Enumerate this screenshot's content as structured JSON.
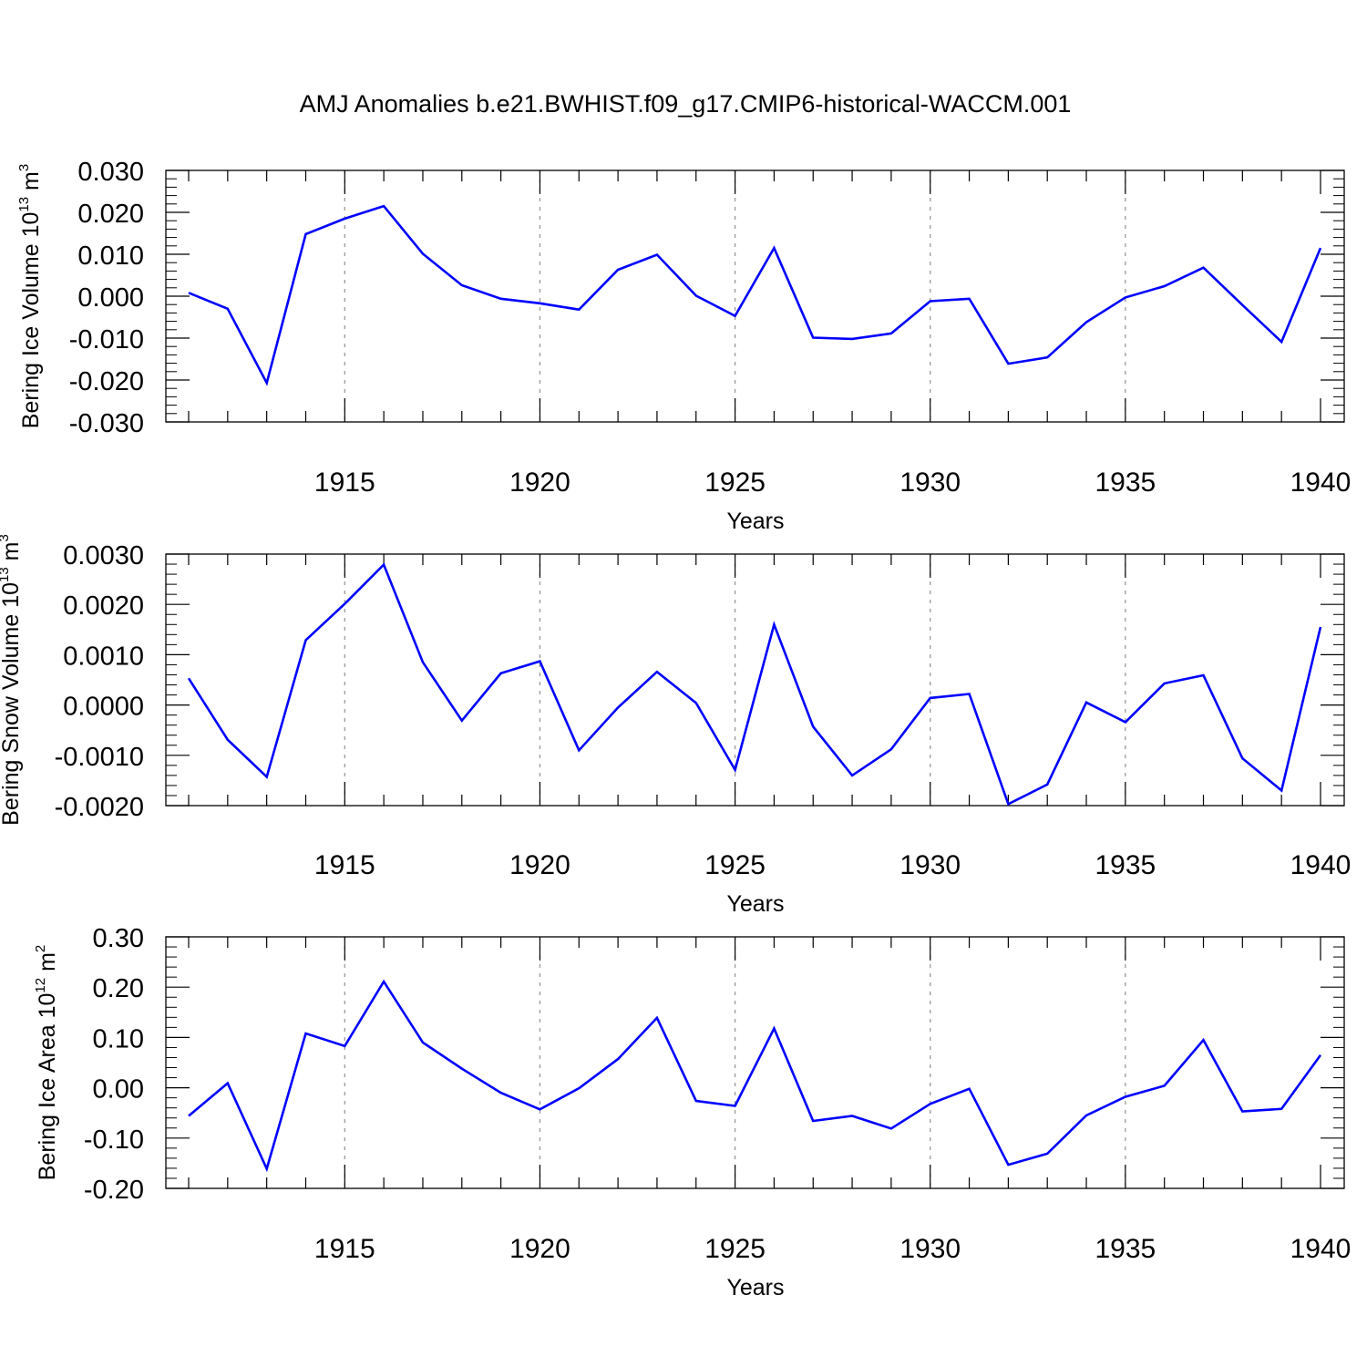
{
  "title": "AMJ Anomalies b.e21.BWHIST.f09_g17.CMIP6-historical-WACCM.001",
  "colors": {
    "line": "#0000ff",
    "axis": "#000000",
    "grid": "#999999",
    "background": "#ffffff"
  },
  "chart_data": [
    {
      "type": "line",
      "ylabel": {
        "text": "Bering Ice Volume 10",
        "exp": "13",
        "unit": " m",
        "unit_exp": "3"
      },
      "xlabel": "Years",
      "xlim": [
        1911,
        1940
      ],
      "ylim": [
        -0.03,
        0.03
      ],
      "yticks": [
        -0.03,
        -0.02,
        -0.01,
        0.0,
        0.01,
        0.02,
        0.03
      ],
      "ytick_labels": [
        "-0.030",
        "-0.020",
        "-0.010",
        "0.000",
        "0.010",
        "0.020",
        "0.030"
      ],
      "xticks": [
        1915,
        1920,
        1925,
        1930,
        1935,
        1940
      ],
      "xtick_labels": [
        "1915",
        "1920",
        "1925",
        "1930",
        "1935",
        "1940"
      ],
      "grid": "vertical dashed at major x ticks",
      "x": [
        1911,
        1912,
        1913,
        1914,
        1915,
        1916,
        1917,
        1918,
        1919,
        1920,
        1921,
        1922,
        1923,
        1924,
        1925,
        1926,
        1927,
        1928,
        1929,
        1930,
        1931,
        1932,
        1933,
        1934,
        1935,
        1936,
        1937,
        1938,
        1939,
        1940
      ],
      "series": [
        {
          "values": [
            0.0008,
            -0.003,
            -0.0207,
            0.0148,
            0.0185,
            0.0215,
            0.0101,
            0.0026,
            -0.0006,
            -0.0017,
            -0.0032,
            0.0063,
            0.0099,
            0.0001,
            -0.0047,
            0.0115,
            -0.0099,
            -0.0102,
            -0.0089,
            -0.0012,
            -0.0006,
            -0.0161,
            -0.0146,
            -0.0062,
            -0.0003,
            0.0024,
            0.0068,
            -0.0021,
            -0.0109,
            0.0115
          ]
        }
      ]
    },
    {
      "type": "line",
      "ylabel": {
        "text": "Bering Snow Volume 10",
        "exp": "13",
        "unit": " m",
        "unit_exp": "3"
      },
      "xlabel": "Years",
      "xlim": [
        1911,
        1940
      ],
      "ylim": [
        -0.002,
        0.003
      ],
      "yticks": [
        -0.002,
        -0.001,
        0.0,
        0.001,
        0.002,
        0.003
      ],
      "ytick_labels": [
        "-0.0020",
        "-0.0010",
        "0.0000",
        "0.0010",
        "0.0020",
        "0.0030"
      ],
      "xticks": [
        1915,
        1920,
        1925,
        1930,
        1935,
        1940
      ],
      "xtick_labels": [
        "1915",
        "1920",
        "1925",
        "1930",
        "1935",
        "1940"
      ],
      "grid": "vertical dashed at major x ticks",
      "x": [
        1911,
        1912,
        1913,
        1914,
        1915,
        1916,
        1917,
        1918,
        1919,
        1920,
        1921,
        1922,
        1923,
        1924,
        1925,
        1926,
        1927,
        1928,
        1929,
        1930,
        1931,
        1932,
        1933,
        1934,
        1935,
        1936,
        1937,
        1938,
        1939,
        1940
      ],
      "series": [
        {
          "values": [
            0.00053,
            -0.00069,
            -0.00143,
            0.00129,
            0.00201,
            0.00279,
            0.00085,
            -0.00031,
            0.00063,
            0.00087,
            -0.0009,
            -5e-05,
            0.00066,
            4e-05,
            -0.00129,
            0.0016,
            -0.00043,
            -0.0014,
            -0.00088,
            0.00014,
            0.00022,
            -0.00197,
            -0.00158,
            5e-05,
            -0.00034,
            0.00043,
            0.00059,
            -0.00106,
            -0.0017,
            0.00155
          ]
        }
      ]
    },
    {
      "type": "line",
      "ylabel": {
        "text": "Bering Ice Area 10",
        "exp": "12",
        "unit": " m",
        "unit_exp": "2"
      },
      "xlabel": "Years",
      "xlim": [
        1911,
        1940
      ],
      "ylim": [
        -0.2,
        0.3
      ],
      "yticks": [
        -0.2,
        -0.1,
        0.0,
        0.1,
        0.2,
        0.3
      ],
      "ytick_labels": [
        "-0.20",
        "-0.10",
        "0.00",
        "0.10",
        "0.20",
        "0.30"
      ],
      "xticks": [
        1915,
        1920,
        1925,
        1930,
        1935,
        1940
      ],
      "xtick_labels": [
        "1915",
        "1920",
        "1925",
        "1930",
        "1935",
        "1940"
      ],
      "grid": "vertical dashed at major x ticks",
      "x": [
        1911,
        1912,
        1913,
        1914,
        1915,
        1916,
        1917,
        1918,
        1919,
        1920,
        1921,
        1922,
        1923,
        1924,
        1925,
        1926,
        1927,
        1928,
        1929,
        1930,
        1931,
        1932,
        1933,
        1934,
        1935,
        1936,
        1937,
        1938,
        1939,
        1940
      ],
      "series": [
        {
          "values": [
            -0.056,
            0.009,
            -0.161,
            0.108,
            0.083,
            0.211,
            0.09,
            0.038,
            -0.01,
            -0.043,
            -0.001,
            0.057,
            0.139,
            -0.026,
            -0.036,
            0.118,
            -0.066,
            -0.056,
            -0.081,
            -0.032,
            -0.002,
            -0.153,
            -0.131,
            -0.055,
            -0.018,
            0.004,
            0.095,
            -0.047,
            -0.042,
            0.065
          ]
        }
      ]
    }
  ]
}
